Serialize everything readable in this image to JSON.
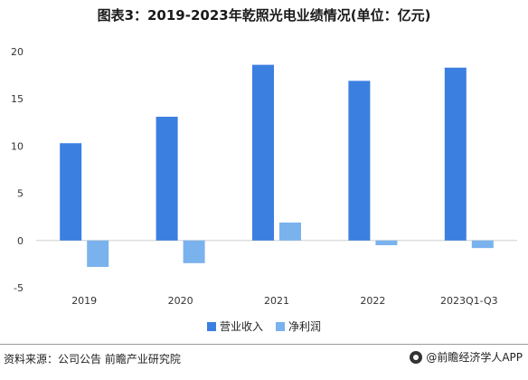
{
  "title": "图表3：2019-2023年乾照光电业绩情况(单位：亿元)",
  "chart_data": {
    "type": "bar",
    "categories": [
      "2019",
      "2020",
      "2021",
      "2022",
      "2023Q1-Q3"
    ],
    "series": [
      {
        "name": "营业收入",
        "values": [
          10.3,
          13.1,
          18.6,
          16.9,
          18.3
        ],
        "color": "#3b7fe0"
      },
      {
        "name": "净利润",
        "values": [
          -2.8,
          -2.4,
          1.9,
          -0.5,
          -0.8
        ],
        "color": "#7ab2ee"
      }
    ],
    "ylim": [
      -5,
      20
    ],
    "yticks": [
      -5,
      0,
      5,
      10,
      15,
      20
    ],
    "grid": false,
    "legend_position": "bottom"
  },
  "footer": {
    "source": "资料来源：公司公告 前瞻产业研究院",
    "brand": "@前瞻经济学人APP"
  }
}
